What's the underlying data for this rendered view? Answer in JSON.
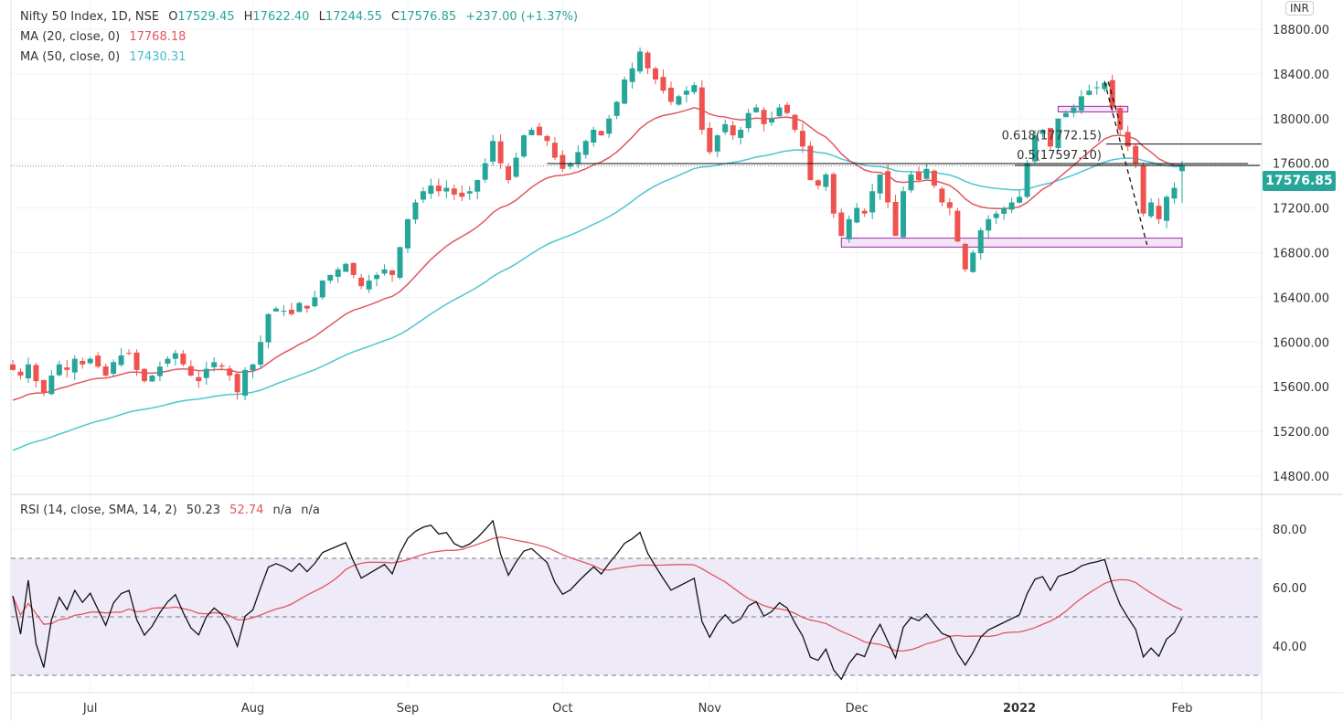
{
  "header": {
    "symbol": "Nifty 50 Index, 1D, NSE",
    "open_label": "O",
    "open": "17529.45",
    "high_label": "H",
    "high": "17622.40",
    "low_label": "L",
    "low": "17244.55",
    "close_label": "C",
    "close": "17576.85",
    "change": "+237.00 (+1.37%)",
    "ma20_label": "MA (20, close, 0)",
    "ma20_value": "17768.18",
    "ma50_label": "MA (50, close, 0)",
    "ma50_value": "17430.31",
    "currency": "INR",
    "last_price_tag": "17576.85"
  },
  "rsi_legend": {
    "label": "RSI (14, close, SMA, 14, 2)",
    "rsi": "50.23",
    "sma": "52.74",
    "na1": "n/a",
    "na2": "n/a"
  },
  "colors": {
    "up": "#26a69a",
    "down": "#ef5350",
    "ma20": "#e0575f",
    "ma50": "#4dc6d0",
    "rsi": "#111111",
    "rsi_sma": "#e0575f",
    "band": "#efeaf8",
    "zone": "#f3e5f5",
    "zone_border": "#9c27b0"
  },
  "chart_data": [
    {
      "type": "candlestick",
      "title": "Nifty 50 Index, 1D, NSE",
      "ylim": [
        14600,
        18900
      ],
      "yticks": [
        "18800.00",
        "18400.00",
        "18000.00",
        "17600.00",
        "17200.00",
        "16800.00",
        "16400.00",
        "16000.00",
        "15600.00",
        "15200.00",
        "14800.00"
      ],
      "ytick_values": [
        18800,
        18400,
        18000,
        17600,
        17200,
        16800,
        16400,
        16000,
        15600,
        15200,
        14800
      ],
      "xticks": [
        {
          "label": "Jul",
          "bar": 10
        },
        {
          "label": "Aug",
          "bar": 31
        },
        {
          "label": "Sep",
          "bar": 51
        },
        {
          "label": "Oct",
          "bar": 71
        },
        {
          "label": "Nov",
          "bar": 90
        },
        {
          "label": "Dec",
          "bar": 109
        },
        {
          "label": "2022",
          "bar": 130
        },
        {
          "label": "Feb",
          "bar": 151
        }
      ],
      "close": [
        15750,
        15700,
        15800,
        15650,
        15550,
        15700,
        15800,
        15750,
        15850,
        15800,
        15850,
        15780,
        15700,
        15820,
        15880,
        15900,
        15750,
        15650,
        15700,
        15780,
        15850,
        15900,
        15800,
        15700,
        15650,
        15760,
        15820,
        15780,
        15700,
        15550,
        15750,
        15800,
        16000,
        16250,
        16300,
        16280,
        16250,
        16350,
        16300,
        16400,
        16550,
        16600,
        16650,
        16700,
        16600,
        16500,
        16550,
        16600,
        16650,
        16600,
        16850,
        17100,
        17250,
        17350,
        17400,
        17350,
        17380,
        17320,
        17300,
        17350,
        17450,
        17600,
        17800,
        17600,
        17450,
        17650,
        17850,
        17900,
        17850,
        17800,
        17650,
        17550,
        17600,
        17700,
        17800,
        17900,
        17850,
        18000,
        18150,
        18350,
        18450,
        18600,
        18450,
        18350,
        18250,
        18150,
        18200,
        18250,
        18300,
        17900,
        17700,
        17850,
        17950,
        17850,
        17900,
        18050,
        18100,
        17950,
        18000,
        18100,
        18050,
        17900,
        17750,
        17450,
        17400,
        17500,
        17150,
        16950,
        17100,
        17200,
        17150,
        17350,
        17500,
        17250,
        16950,
        17350,
        17500,
        17450,
        17550,
        17400,
        17250,
        17200,
        16900,
        16650,
        16800,
        17000,
        17100,
        17150,
        17200,
        17250,
        17300,
        17600,
        17850,
        17900,
        17750,
        18000,
        18050,
        18100,
        18200,
        18250,
        18280,
        18320,
        18100,
        17900,
        17750,
        17600,
        17150,
        17250,
        17100,
        17300,
        17380,
        17577
      ],
      "first_open": 15800,
      "last_ohlc": {
        "open": 17529.45,
        "high": 17622.4,
        "low": 17244.55,
        "close": 17576.85
      },
      "series": [
        {
          "name": "MA (20, close, 0)",
          "last": 17768.18,
          "start": 15450
        },
        {
          "name": "MA (50, close, 0)",
          "last": 17430.31,
          "start": 15000
        }
      ],
      "drawings": {
        "fib_levels": [
          {
            "label": "0.618(17772.15)",
            "value": 17772.15
          },
          {
            "label": "0.5(17597.10)",
            "value": 17597.1
          }
        ],
        "support_line": 17597.1,
        "zones": [
          {
            "low": 16850,
            "high": 16930,
            "from_bar": 107,
            "to_bar": 151
          },
          {
            "low": 18060,
            "high": 18110,
            "from_bar": 135,
            "to_bar": 144
          }
        ],
        "last_price": 17576.85
      }
    },
    {
      "type": "line",
      "title": "RSI (14, close, SMA, 14, 2)",
      "ylim": [
        25,
        90
      ],
      "yticks": [
        "80.00",
        "60.00",
        "40.00"
      ],
      "ytick_values": [
        80,
        60,
        40
      ],
      "bands": {
        "upper": 70,
        "middle": 50,
        "lower": 30
      },
      "last_rsi": 50.23,
      "last_sma": 52.74
    }
  ]
}
